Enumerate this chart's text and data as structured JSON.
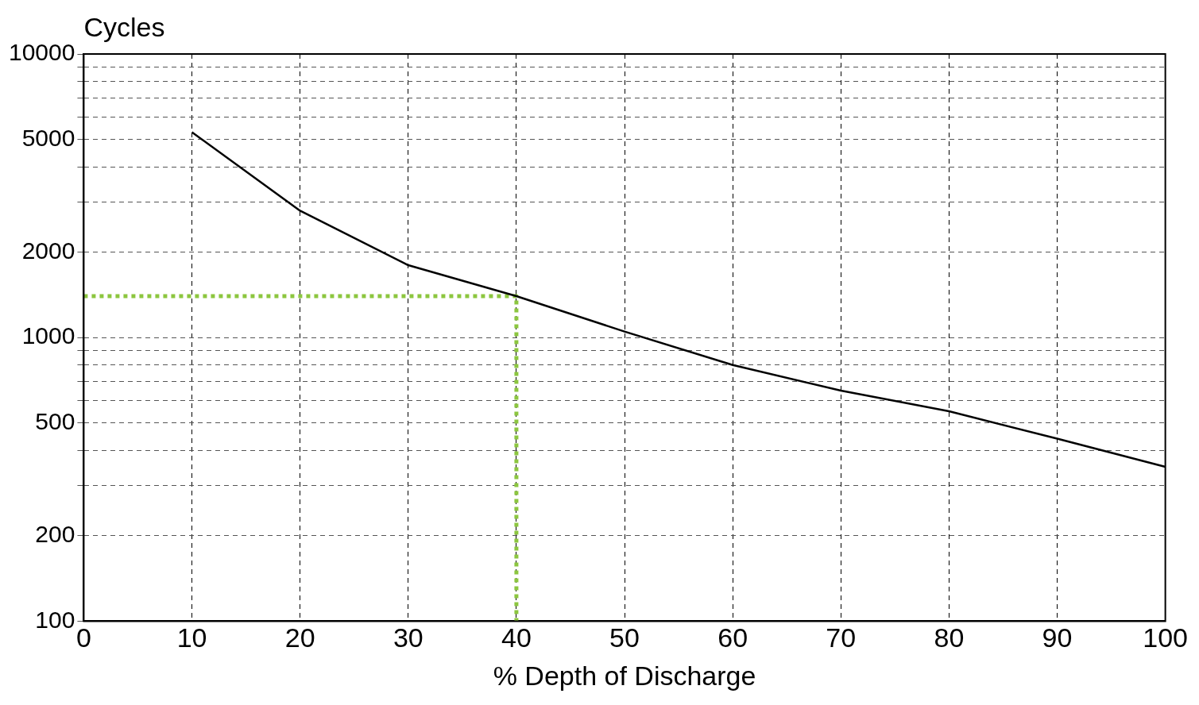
{
  "chart_data": {
    "type": "line",
    "xlabel": "% Depth of Discharge",
    "ylabel": "Cycles",
    "log": "y",
    "grid": true,
    "legend": false,
    "marker": "none",
    "xlim": [
      0,
      100
    ],
    "xticks": [
      0,
      10,
      20,
      30,
      40,
      50,
      60,
      70,
      80,
      90,
      100
    ],
    "ylim": [
      100,
      10000
    ],
    "yticks": [
      100,
      200,
      {
        "value": 300,
        "label": null
      },
      {
        "value": 400,
        "label": null
      },
      500,
      {
        "value": 600,
        "label": null
      },
      {
        "value": 700,
        "label": null
      },
      {
        "value": 800,
        "label": null
      },
      {
        "value": 900,
        "label": null
      },
      1000,
      2000,
      {
        "value": 3000,
        "label": null
      },
      {
        "value": 4000,
        "label": null
      },
      5000,
      {
        "value": 6000,
        "label": null
      },
      {
        "value": 7000,
        "label": null
      },
      {
        "value": 8000,
        "label": null
      },
      {
        "value": 9000,
        "label": null
      },
      10000
    ],
    "series": [
      {
        "type": "line",
        "color": "#000000",
        "line_style": "solid",
        "x": [
          10,
          20,
          30,
          40,
          50,
          60,
          70,
          80,
          90,
          100
        ],
        "values": [
          5300,
          2800,
          1800,
          1400,
          1050,
          800,
          650,
          550,
          440,
          350
        ]
      },
      {
        "type": "line",
        "color": "#8cc63f",
        "line_style": "dotted",
        "x": [
          0,
          40,
          40
        ],
        "values": [
          1400,
          1400,
          100
        ]
      }
    ]
  }
}
